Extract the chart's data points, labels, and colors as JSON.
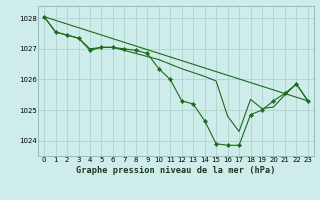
{
  "title": "Graphe pression niveau de la mer (hPa)",
  "background_color": "#ceecea",
  "grid_color": "#aed4d0",
  "line_color": "#1a6b1a",
  "marker_color": "#1a6b1a",
  "xlim": [
    -0.5,
    23.5
  ],
  "ylim": [
    1023.5,
    1028.4
  ],
  "yticks": [
    1024,
    1025,
    1026,
    1027,
    1028
  ],
  "xticks": [
    0,
    1,
    2,
    3,
    4,
    5,
    6,
    7,
    8,
    9,
    10,
    11,
    12,
    13,
    14,
    15,
    16,
    17,
    18,
    19,
    20,
    21,
    22,
    23
  ],
  "series": [
    {
      "x": [
        0,
        1,
        2,
        3,
        4,
        5,
        6,
        7,
        8,
        9,
        10,
        11,
        12,
        13,
        14,
        15,
        16,
        17,
        18,
        19,
        20,
        21,
        22,
        23
      ],
      "y": [
        1028.05,
        1027.55,
        1027.45,
        1027.35,
        1026.95,
        1027.05,
        1027.05,
        1027.0,
        1026.95,
        1026.85,
        1026.35,
        1026.0,
        1025.3,
        1025.2,
        1024.65,
        1023.9,
        1023.85,
        1023.85,
        1024.85,
        1025.0,
        1025.3,
        1025.55,
        1025.85,
        1025.3
      ],
      "marker": true,
      "linewidth": 0.8
    },
    {
      "x": [
        0,
        1,
        2,
        3,
        4,
        5,
        6,
        10,
        11,
        12,
        14,
        15,
        16,
        17,
        18,
        19,
        20,
        21,
        22,
        23
      ],
      "y": [
        1028.05,
        1027.55,
        1027.45,
        1027.35,
        1027.0,
        1027.05,
        1027.05,
        1026.65,
        1026.5,
        1026.35,
        1026.1,
        1025.95,
        1024.8,
        1024.3,
        1025.35,
        1025.05,
        1025.1,
        1025.5,
        1025.85,
        1025.3
      ],
      "marker": false,
      "linewidth": 0.8
    },
    {
      "x": [
        0,
        23
      ],
      "y": [
        1028.05,
        1025.3
      ],
      "marker": false,
      "linewidth": 0.8
    }
  ]
}
